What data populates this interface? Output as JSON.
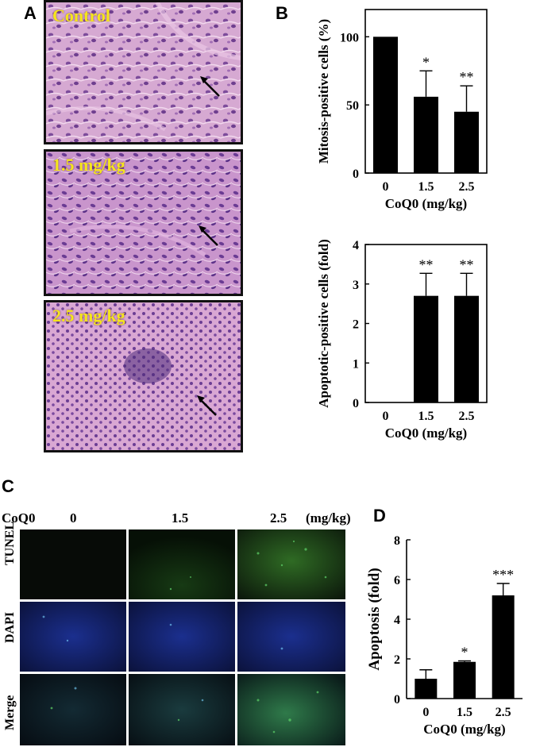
{
  "panels": {
    "A": "A",
    "B": "B",
    "C": "C",
    "D": "D"
  },
  "histology": [
    {
      "label": "Control",
      "tint": "#c88bc0"
    },
    {
      "label": "1.5 mg/kg",
      "tint": "#b97fc0"
    },
    {
      "label": "2.5 mg/kg",
      "tint": "#b77cbc"
    }
  ],
  "fluorescence": {
    "treatment_label": "CoQ0",
    "columns": [
      "0",
      "1.5",
      "2.5"
    ],
    "unit": "(mg/kg)",
    "rows": [
      "TUNEL",
      "DAPI",
      "Merge"
    ]
  },
  "chart_data": [
    {
      "id": "B-top",
      "type": "bar",
      "categories": [
        "0",
        "1.5",
        "2.5"
      ],
      "values": [
        100,
        56,
        45
      ],
      "errors": [
        0,
        19,
        19
      ],
      "significance": [
        "",
        "*",
        "**"
      ],
      "xlabel": "CoQ0 (mg/kg)",
      "ylabel": "Mitosis-positive cells (%)",
      "ylim": [
        0,
        120
      ],
      "yticks": [
        0,
        50,
        100
      ],
      "frame": "box"
    },
    {
      "id": "B-bottom",
      "type": "bar",
      "categories": [
        "0",
        "1.5",
        "2.5"
      ],
      "values": [
        0,
        2.7,
        2.7
      ],
      "errors": [
        0,
        0.57,
        0.57
      ],
      "significance": [
        "",
        "**",
        "**"
      ],
      "xlabel": "CoQ0 (mg/kg)",
      "ylabel": "Apoptotic-positive cells (fold)",
      "ylim": [
        0,
        4
      ],
      "yticks": [
        0,
        1,
        2,
        3,
        4
      ],
      "frame": "box"
    },
    {
      "id": "D",
      "type": "bar",
      "categories": [
        "0",
        "1.5",
        "2.5"
      ],
      "values": [
        1.0,
        1.85,
        5.2
      ],
      "errors": [
        0.45,
        0.05,
        0.6
      ],
      "significance": [
        "",
        "*",
        "***"
      ],
      "xlabel": "CoQ0 (mg/kg)",
      "ylabel": "Apoptosis (fold)",
      "ylim": [
        0,
        8
      ],
      "yticks": [
        0,
        2,
        4,
        6,
        8
      ],
      "frame": "axes"
    }
  ]
}
